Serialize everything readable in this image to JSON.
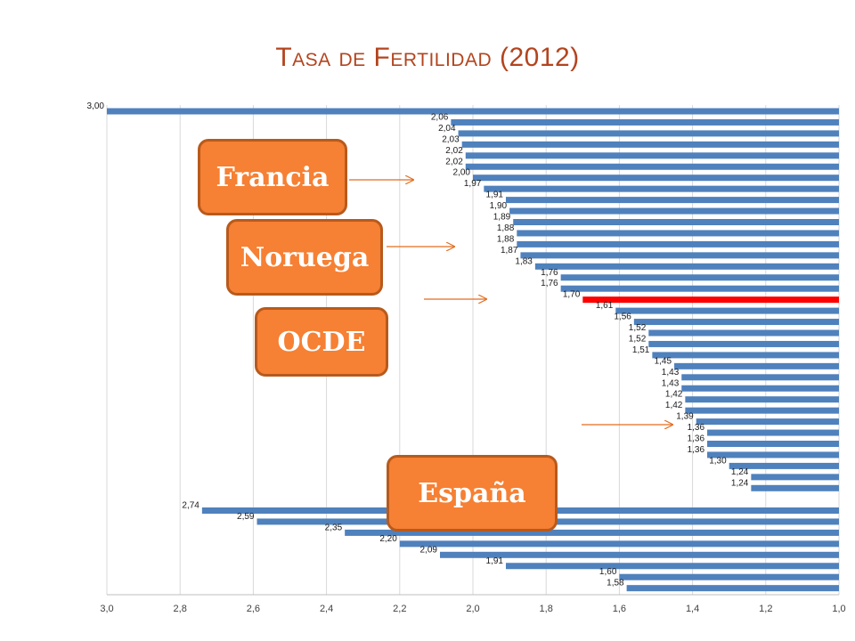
{
  "title": "Tasa de Fertilidad (2012)",
  "colors": {
    "bar": "#4f81bd",
    "highlight": "#ff0000",
    "callout": "#f68033",
    "arrow": "#e36c1f",
    "title": "#b3441e"
  },
  "callouts": {
    "francia": "Francia",
    "noruega": "Noruega",
    "ocde": "OCDE",
    "espana": "España"
  },
  "chart_data": {
    "type": "bar",
    "orientation": "horizontal",
    "title": "Tasa de Fertilidad (2012)",
    "xlim": [
      1.0,
      3.0
    ],
    "x_reversed": true,
    "x_ticks": [
      "3,0",
      "2,8",
      "2,6",
      "2,4",
      "2,2",
      "2,0",
      "1,8",
      "1,6",
      "1,4",
      "1,2",
      "1,0"
    ],
    "grid": true,
    "legend": "none",
    "values": [
      3.0,
      2.06,
      2.04,
      2.03,
      2.02,
      2.02,
      2.0,
      1.97,
      1.91,
      1.9,
      1.89,
      1.88,
      1.88,
      1.87,
      1.83,
      1.76,
      1.76,
      1.7,
      1.61,
      1.56,
      1.52,
      1.52,
      1.51,
      1.45,
      1.43,
      1.43,
      1.42,
      1.42,
      1.39,
      1.36,
      1.36,
      1.36,
      1.3,
      1.24,
      1.24,
      2.74,
      2.59,
      2.35,
      2.2,
      2.09,
      1.91,
      1.6,
      1.58
    ],
    "labels": [
      "3,00",
      "2,06",
      "2,04",
      "2,03",
      "2,02",
      "2,02",
      "2,00",
      "1,97",
      "1,91",
      "1,90",
      "1,89",
      "1,88",
      "1,88",
      "1,87",
      "1,83",
      "1,76",
      "1,76",
      "1,70",
      "1,61",
      "1,56",
      "1,52",
      "1,52",
      "1,51",
      "1,45",
      "1,43",
      "1,43",
      "1,42",
      "1,42",
      "1,39",
      "1,36",
      "1,36",
      "1,36",
      "1,30",
      "1,24",
      "1,24",
      "2,74",
      "2,59",
      "2,35",
      "2,20",
      "2,09",
      "1,91",
      "1,60",
      "1,58"
    ],
    "highlight_index": 17,
    "group_break_after": 34
  }
}
